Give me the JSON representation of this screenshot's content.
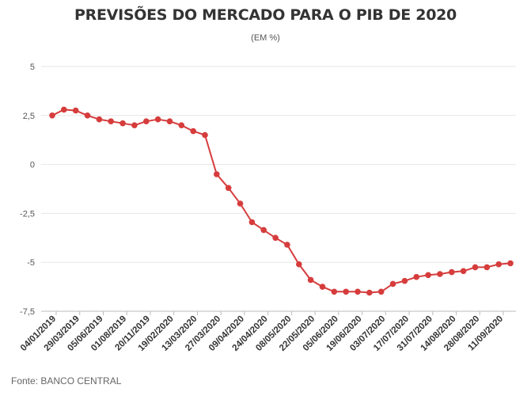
{
  "chart_data": {
    "type": "line",
    "title": "PREVISÕES DO MERCADO PARA O PIB DE 2020",
    "subtitle": "(EM %)",
    "source": "Fonte: BANCO CENTRAL",
    "ylim": [
      -7.5,
      5
    ],
    "yticks": [
      5,
      2.5,
      0,
      -2.5,
      -5,
      -7.5
    ],
    "ytick_labels": [
      "5",
      "2,5",
      "0",
      "-2,5",
      "-5",
      "-7,5"
    ],
    "x_tick_labels": [
      "04/01/2019",
      "29/03/2019",
      "05/06/2019",
      "01/08/2019",
      "20/11/2019",
      "19/02/2020",
      "13/03/2020",
      "27/03/2020",
      "09/04/2020",
      "24/04/2020",
      "08/05/2020",
      "22/05/2020",
      "05/06/2020",
      "19/06/2020",
      "03/07/2020",
      "17/07/2020",
      "31/07/2020",
      "14/08/2020",
      "28/08/2020",
      "11/09/2020"
    ],
    "grid": true,
    "legend": "none",
    "color": "#d63c3c",
    "series": [
      {
        "values": [
          2.5,
          2.8,
          2.75,
          2.5,
          2.3,
          2.2,
          2.1,
          2.0,
          2.2,
          2.3,
          2.2,
          2.0,
          1.7,
          1.5,
          -0.5,
          -1.2,
          -2.0,
          -2.95,
          -3.35,
          -3.75,
          -4.1,
          -5.1,
          -5.9,
          -6.25,
          -6.5,
          -6.5,
          -6.5,
          -6.55,
          -6.5,
          -6.1,
          -5.95,
          -5.75,
          -5.65,
          -5.6,
          -5.5,
          -5.45,
          -5.25,
          -5.25,
          -5.1,
          -5.05
        ]
      }
    ]
  }
}
